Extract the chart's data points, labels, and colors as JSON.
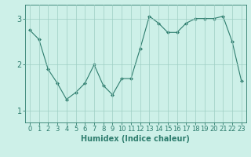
{
  "x": [
    0,
    1,
    2,
    3,
    4,
    5,
    6,
    7,
    8,
    9,
    10,
    11,
    12,
    13,
    14,
    15,
    16,
    17,
    18,
    19,
    20,
    21,
    22,
    23
  ],
  "y": [
    2.75,
    2.55,
    1.9,
    1.6,
    1.25,
    1.4,
    1.6,
    2.0,
    1.55,
    1.35,
    1.7,
    1.7,
    2.35,
    3.05,
    2.9,
    2.7,
    2.7,
    2.9,
    3.0,
    3.0,
    3.0,
    3.05,
    2.5,
    1.65
  ],
  "line_color": "#2e7d6e",
  "marker": "D",
  "marker_size": 2,
  "bg_color": "#cdf0e8",
  "grid_color": "#9ecec4",
  "xlabel": "Humidex (Indice chaleur)",
  "xlim": [
    -0.5,
    23.5
  ],
  "ylim": [
    0.75,
    3.3
  ],
  "yticks": [
    1,
    2,
    3
  ],
  "xticks": [
    0,
    1,
    2,
    3,
    4,
    5,
    6,
    7,
    8,
    9,
    10,
    11,
    12,
    13,
    14,
    15,
    16,
    17,
    18,
    19,
    20,
    21,
    22,
    23
  ],
  "tick_color": "#2e7d6e",
  "label_fontsize": 7,
  "tick_fontsize": 6,
  "ytick_fontsize": 7,
  "line_width": 0.8
}
